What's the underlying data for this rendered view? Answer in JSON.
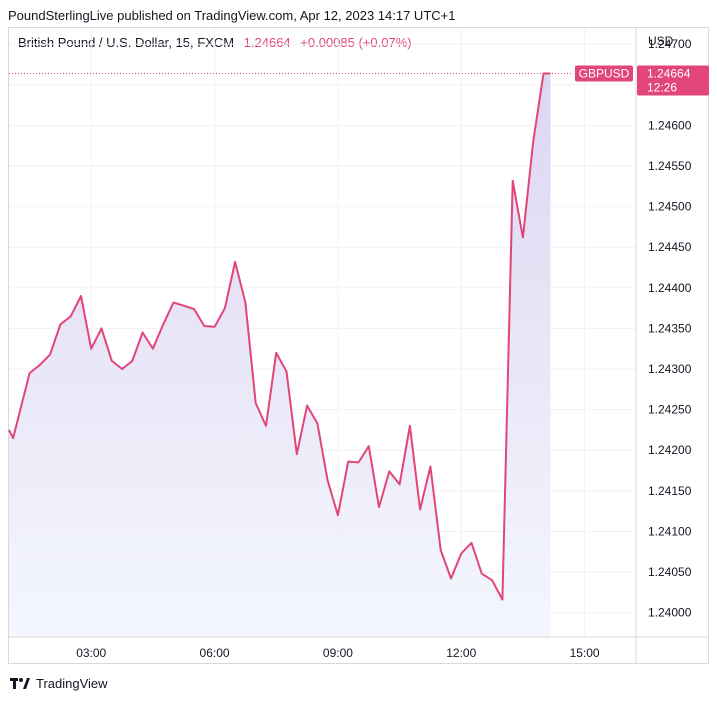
{
  "header": {
    "text": "PoundSterlingLive published on TradingView.com, Apr 12, 2023 14:17 UTC+1"
  },
  "legend": {
    "name": "British Pound / U.S. Dollar, 15, FXCM",
    "price": "1.24664",
    "change": "+0.00085 (+0.07%)"
  },
  "footer": {
    "brand": "TradingView",
    "logo": "tradingview-logo-icon"
  },
  "colors": {
    "line": "#e2457a",
    "fill_top": "#d9d2f0",
    "fill_bottom": "#f3f6fd",
    "badge": "#e2457a",
    "grid": "#f0f2f5"
  },
  "chart_data": {
    "type": "area",
    "currency_label": "USD",
    "y_ticks": [
      "1.24700",
      "1.24650",
      "1.24600",
      "1.24550",
      "1.24500",
      "1.24450",
      "1.24400",
      "1.24350",
      "1.24300",
      "1.24250",
      "1.24200",
      "1.24150",
      "1.24100",
      "1.24050",
      "1.24000"
    ],
    "x_ticks": [
      "03:00",
      "06:00",
      "09:00",
      "12:00",
      "15:00"
    ],
    "x_ticks_hours": [
      3,
      6,
      9,
      12,
      15
    ],
    "ylim": [
      1.2397,
      1.2472
    ],
    "xlim_hours": [
      1.0,
      16.25
    ],
    "last_price_badge": {
      "symbol": "GBPUSD",
      "price": "1.24664",
      "countdown": "12:26",
      "value": 1.24664
    },
    "series": [
      {
        "x_hours": [
          1.0,
          1.1,
          1.5,
          1.75,
          2.0,
          2.25,
          2.5,
          2.75,
          3.0,
          3.25,
          3.5,
          3.75,
          4.0,
          4.25,
          4.5,
          4.75,
          5.0,
          5.25,
          5.5,
          5.75,
          6.0,
          6.25,
          6.5,
          6.75,
          7.0,
          7.25,
          7.5,
          7.75,
          8.0,
          8.25,
          8.5,
          8.75,
          9.0,
          9.25,
          9.5,
          9.75,
          10.0,
          10.25,
          10.5,
          10.75,
          11.0,
          11.25,
          11.5,
          11.75,
          12.0,
          12.25,
          12.5,
          12.75,
          13.0,
          13.25,
          13.5,
          13.75,
          14.0,
          14.17
        ],
        "values": [
          1.24225,
          1.24215,
          1.24295,
          1.24305,
          1.24318,
          1.24355,
          1.24365,
          1.2439,
          1.24325,
          1.2435,
          1.2431,
          1.243,
          1.2431,
          1.24345,
          1.24325,
          1.24355,
          1.24382,
          1.24378,
          1.24374,
          1.24353,
          1.24352,
          1.24375,
          1.24432,
          1.24382,
          1.24258,
          1.2423,
          1.2432,
          1.24297,
          1.24195,
          1.24255,
          1.24233,
          1.24163,
          1.2412,
          1.24186,
          1.24185,
          1.24205,
          1.2413,
          1.24174,
          1.24158,
          1.2423,
          1.24127,
          1.2418,
          1.24077,
          1.24042,
          1.24073,
          1.24086,
          1.24048,
          1.2404,
          1.24016,
          1.24532,
          1.24462,
          1.2458,
          1.24664,
          1.24664
        ]
      }
    ]
  }
}
